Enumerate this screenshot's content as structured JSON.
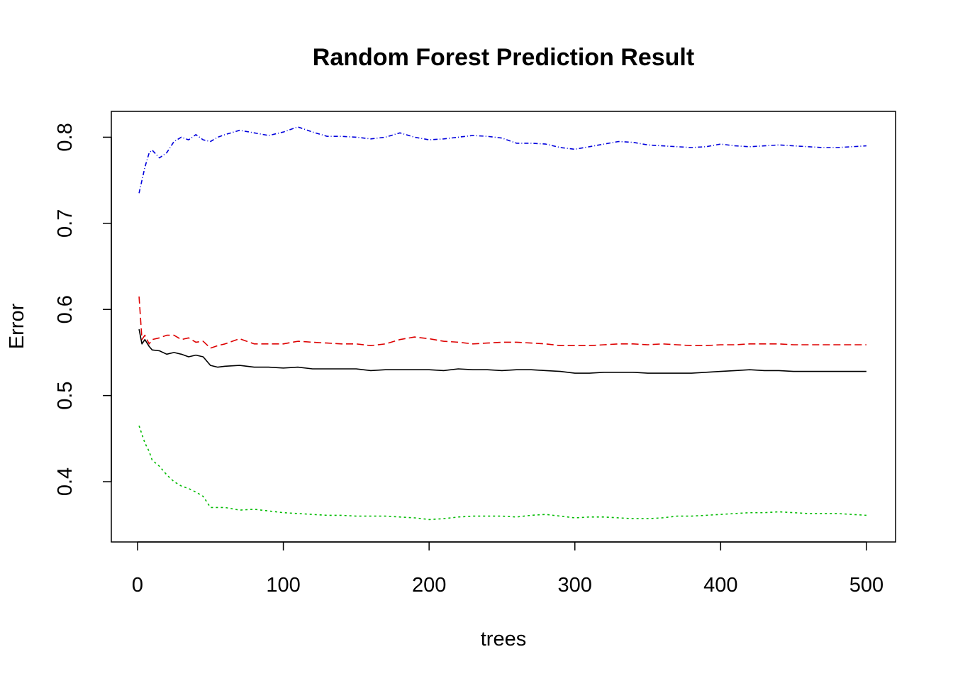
{
  "chart_data": {
    "type": "line",
    "title": "Random Forest Prediction Result",
    "xlabel": "trees",
    "ylabel": "Error",
    "xlim": [
      -18,
      520
    ],
    "ylim": [
      0.33,
      0.83
    ],
    "xticks": [
      0,
      100,
      200,
      300,
      400,
      500
    ],
    "xtick_labels": [
      "0",
      "100",
      "200",
      "300",
      "400",
      "500"
    ],
    "yticks": [
      0.4,
      0.5,
      0.6,
      0.7,
      0.8
    ],
    "ytick_labels": [
      "0.4",
      "0.5",
      "0.6",
      "0.7",
      "0.8"
    ],
    "grid": false,
    "legend": "none",
    "series": [
      {
        "color": "#000000",
        "dash": "none",
        "x": [
          1,
          3,
          5,
          8,
          10,
          15,
          20,
          25,
          30,
          35,
          40,
          45,
          50,
          55,
          60,
          70,
          80,
          90,
          100,
          110,
          120,
          130,
          140,
          150,
          160,
          170,
          180,
          190,
          200,
          210,
          220,
          230,
          240,
          250,
          260,
          270,
          280,
          290,
          300,
          310,
          320,
          330,
          340,
          350,
          360,
          370,
          380,
          390,
          400,
          410,
          420,
          430,
          440,
          450,
          460,
          470,
          480,
          490,
          500
        ],
        "y": [
          0.577,
          0.56,
          0.565,
          0.557,
          0.553,
          0.552,
          0.548,
          0.55,
          0.548,
          0.545,
          0.547,
          0.545,
          0.535,
          0.533,
          0.534,
          0.535,
          0.533,
          0.533,
          0.532,
          0.533,
          0.531,
          0.531,
          0.531,
          0.531,
          0.529,
          0.53,
          0.53,
          0.53,
          0.53,
          0.529,
          0.531,
          0.53,
          0.53,
          0.529,
          0.53,
          0.53,
          0.529,
          0.528,
          0.526,
          0.526,
          0.527,
          0.527,
          0.527,
          0.526,
          0.526,
          0.526,
          0.526,
          0.527,
          0.528,
          0.529,
          0.53,
          0.529,
          0.529,
          0.528,
          0.528,
          0.528,
          0.528,
          0.528,
          0.528
        ]
      },
      {
        "color": "#dd0000",
        "dash": "10,5",
        "x": [
          1,
          3,
          5,
          8,
          10,
          15,
          20,
          25,
          30,
          35,
          40,
          45,
          50,
          55,
          60,
          70,
          80,
          90,
          100,
          110,
          120,
          130,
          140,
          150,
          160,
          170,
          180,
          190,
          200,
          210,
          220,
          230,
          240,
          250,
          260,
          270,
          280,
          290,
          300,
          310,
          320,
          330,
          340,
          350,
          360,
          370,
          380,
          390,
          400,
          410,
          420,
          430,
          440,
          450,
          460,
          470,
          480,
          490,
          500
        ],
        "y": [
          0.615,
          0.565,
          0.57,
          0.56,
          0.565,
          0.567,
          0.57,
          0.57,
          0.565,
          0.567,
          0.562,
          0.563,
          0.555,
          0.558,
          0.56,
          0.566,
          0.56,
          0.56,
          0.56,
          0.563,
          0.562,
          0.561,
          0.56,
          0.56,
          0.558,
          0.56,
          0.565,
          0.568,
          0.566,
          0.563,
          0.562,
          0.56,
          0.561,
          0.562,
          0.562,
          0.561,
          0.56,
          0.558,
          0.558,
          0.558,
          0.559,
          0.56,
          0.56,
          0.559,
          0.56,
          0.559,
          0.558,
          0.558,
          0.559,
          0.559,
          0.56,
          0.56,
          0.56,
          0.559,
          0.559,
          0.559,
          0.559,
          0.559,
          0.559
        ]
      },
      {
        "color": "#00bb00",
        "dash": "3,4",
        "x": [
          1,
          3,
          5,
          8,
          10,
          15,
          20,
          25,
          30,
          35,
          40,
          45,
          50,
          55,
          60,
          70,
          80,
          90,
          100,
          110,
          120,
          130,
          140,
          150,
          160,
          170,
          180,
          190,
          200,
          210,
          220,
          230,
          240,
          250,
          260,
          270,
          280,
          290,
          300,
          310,
          320,
          330,
          340,
          350,
          360,
          370,
          380,
          390,
          400,
          410,
          420,
          430,
          440,
          450,
          460,
          470,
          480,
          490,
          500
        ],
        "y": [
          0.465,
          0.455,
          0.445,
          0.435,
          0.425,
          0.418,
          0.408,
          0.4,
          0.395,
          0.392,
          0.388,
          0.383,
          0.37,
          0.37,
          0.37,
          0.367,
          0.368,
          0.366,
          0.364,
          0.363,
          0.362,
          0.361,
          0.361,
          0.36,
          0.36,
          0.36,
          0.359,
          0.358,
          0.356,
          0.357,
          0.359,
          0.36,
          0.36,
          0.36,
          0.359,
          0.361,
          0.362,
          0.36,
          0.358,
          0.359,
          0.359,
          0.358,
          0.357,
          0.357,
          0.358,
          0.36,
          0.36,
          0.361,
          0.362,
          0.363,
          0.364,
          0.364,
          0.365,
          0.364,
          0.363,
          0.363,
          0.363,
          0.362,
          0.361
        ]
      },
      {
        "color": "#0000dd",
        "dash": "6,3,1,3",
        "x": [
          1,
          3,
          5,
          8,
          10,
          15,
          20,
          25,
          30,
          35,
          40,
          45,
          50,
          55,
          60,
          70,
          80,
          90,
          100,
          110,
          120,
          130,
          140,
          150,
          160,
          170,
          180,
          190,
          200,
          210,
          220,
          230,
          240,
          250,
          260,
          270,
          280,
          290,
          300,
          310,
          320,
          330,
          340,
          350,
          360,
          370,
          380,
          390,
          400,
          410,
          420,
          430,
          440,
          450,
          460,
          470,
          480,
          490,
          500
        ],
        "y": [
          0.735,
          0.75,
          0.765,
          0.782,
          0.785,
          0.776,
          0.782,
          0.795,
          0.8,
          0.797,
          0.803,
          0.797,
          0.795,
          0.8,
          0.803,
          0.808,
          0.805,
          0.802,
          0.806,
          0.812,
          0.806,
          0.801,
          0.801,
          0.8,
          0.798,
          0.8,
          0.805,
          0.8,
          0.797,
          0.798,
          0.8,
          0.802,
          0.801,
          0.799,
          0.793,
          0.793,
          0.792,
          0.788,
          0.786,
          0.789,
          0.792,
          0.795,
          0.794,
          0.791,
          0.79,
          0.789,
          0.788,
          0.789,
          0.792,
          0.79,
          0.789,
          0.79,
          0.791,
          0.79,
          0.789,
          0.788,
          0.788,
          0.789,
          0.79
        ]
      }
    ]
  }
}
